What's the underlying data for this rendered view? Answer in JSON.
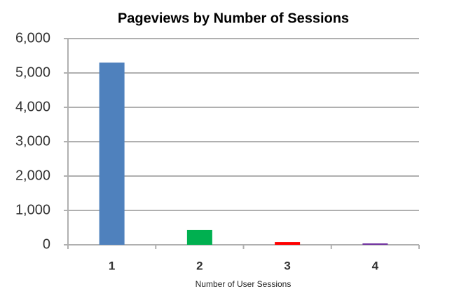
{
  "chart_data": {
    "type": "bar",
    "title": "Pageviews by Number of Sessions",
    "x_label": "Number of User Sessions",
    "categories": [
      "1",
      "2",
      "3",
      "4"
    ],
    "values": [
      5300,
      430,
      80,
      40
    ],
    "colors": [
      "#4f81bd",
      "#00b050",
      "#ff0000",
      "#7030a0"
    ],
    "ylim": [
      0,
      6000
    ],
    "yticks": [
      0,
      {
        "value": 1000,
        "label": "1,000"
      },
      {
        "value": 2000,
        "label": "2,000"
      },
      {
        "value": 3000,
        "label": "3,000"
      },
      {
        "value": 4000,
        "label": "4,000"
      },
      {
        "value": 5000,
        "label": "5,000"
      },
      {
        "value": 6000,
        "label": "6,000"
      }
    ],
    "grid": true
  }
}
